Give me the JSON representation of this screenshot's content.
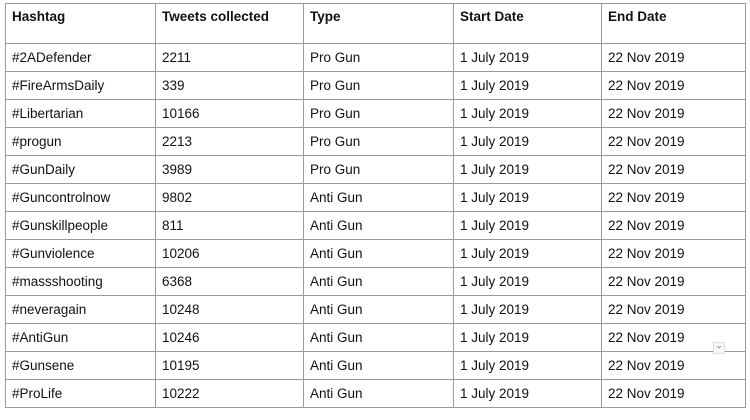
{
  "table": {
    "headers": [
      "Hashtag",
      "Tweets collected",
      "Type",
      "Start Date",
      "End Date"
    ],
    "rows": [
      [
        "#2ADefender",
        "2211",
        "Pro Gun",
        "1 July 2019",
        "22 Nov 2019"
      ],
      [
        "#FireArmsDaily",
        "339",
        "Pro Gun",
        "1 July 2019",
        "22 Nov 2019"
      ],
      [
        "#Libertarian",
        "10166",
        "Pro Gun",
        "1 July 2019",
        "22 Nov 2019"
      ],
      [
        "#progun",
        "2213",
        "Pro Gun",
        "1 July 2019",
        "22 Nov 2019"
      ],
      [
        "#GunDaily",
        "3989",
        "Pro Gun",
        "1 July 2019",
        "22 Nov 2019"
      ],
      [
        "#Guncontrolnow",
        "9802",
        "Anti Gun",
        "1 July 2019",
        "22 Nov 2019"
      ],
      [
        "#Gunskillpeople",
        "811",
        "Anti Gun",
        "1 July 2019",
        "22 Nov 2019"
      ],
      [
        "#Gunviolence",
        "10206",
        "Anti Gun",
        "1 July 2019",
        "22 Nov 2019"
      ],
      [
        "#massshooting",
        "6368",
        "Anti Gun",
        "1 July 2019",
        "22 Nov 2019"
      ],
      [
        "#neveragain",
        "10248",
        "Anti Gun",
        "1 July 2019",
        "22 Nov 2019"
      ],
      [
        "#AntiGun",
        "10246",
        "Anti Gun",
        "1 July 2019",
        "22 Nov 2019"
      ],
      [
        "#Gunsene",
        "10195",
        "Anti Gun",
        "1 July 2019",
        "22 Nov 2019"
      ],
      [
        "#ProLife",
        "10222",
        "Anti Gun",
        "1 July 2019",
        "22 Nov 2019"
      ]
    ]
  },
  "icons": {
    "dropdown_hint": "chevron-down-icon"
  }
}
